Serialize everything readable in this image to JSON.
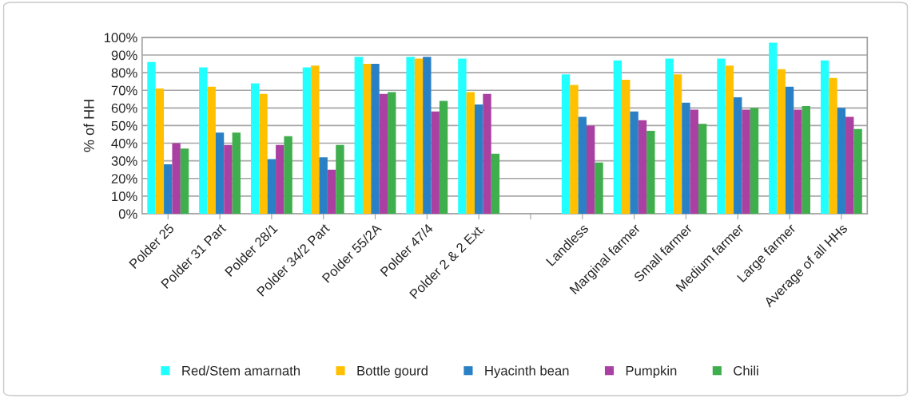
{
  "chart_data": {
    "type": "bar",
    "ylabel": "% of HH",
    "categories": [
      "Polder 25",
      "Polder 31 Part",
      "Polder 28/1",
      "Polder 34/2 Part",
      "Polder 55/2A",
      "Polder 47/4",
      "Polder 2 & 2 Ext.",
      null,
      "Landless",
      "Marginal farmer",
      "Small farmer",
      "Medium farmer",
      "Large farmer",
      "Average of all HHs"
    ],
    "series": [
      {
        "name": "Red/Stem amarnath",
        "color": "#22ffff",
        "values": [
          86,
          83,
          74,
          83,
          89,
          89,
          88,
          null,
          79,
          87,
          88,
          88,
          97,
          87
        ]
      },
      {
        "name": "Bottle gourd",
        "color": "#ffc000",
        "values": [
          71,
          72,
          68,
          84,
          85,
          88,
          69,
          null,
          73,
          76,
          79,
          84,
          82,
          77
        ]
      },
      {
        "name": "Hyacinth bean",
        "color": "#2a80c5",
        "values": [
          28,
          46,
          31,
          32,
          85,
          89,
          62,
          null,
          55,
          58,
          63,
          66,
          72,
          60
        ]
      },
      {
        "name": "Pumpkin",
        "color": "#a940a2",
        "values": [
          40,
          39,
          39,
          25,
          68,
          58,
          68,
          null,
          50,
          53,
          59,
          59,
          59,
          55
        ]
      },
      {
        "name": "Chili",
        "color": "#3fae4c",
        "values": [
          37,
          46,
          44,
          39,
          69,
          64,
          34,
          null,
          29,
          47,
          51,
          60,
          61,
          48
        ]
      }
    ],
    "ylim": [
      0,
      100
    ],
    "yticks": [
      {
        "value": 0,
        "label": "0%"
      },
      {
        "value": 10,
        "label": "10%"
      },
      {
        "value": 20,
        "label": "20%"
      },
      {
        "value": 30,
        "label": "30%"
      },
      {
        "value": 40,
        "label": "40%"
      },
      {
        "value": 50,
        "label": "50%"
      },
      {
        "value": 60,
        "label": "60%"
      },
      {
        "value": 70,
        "label": "70%"
      },
      {
        "value": 80,
        "label": "80%"
      },
      {
        "value": 90,
        "label": "90%"
      },
      {
        "value": 100,
        "label": "100%"
      }
    ],
    "grid": "y",
    "legend": "bottom"
  }
}
